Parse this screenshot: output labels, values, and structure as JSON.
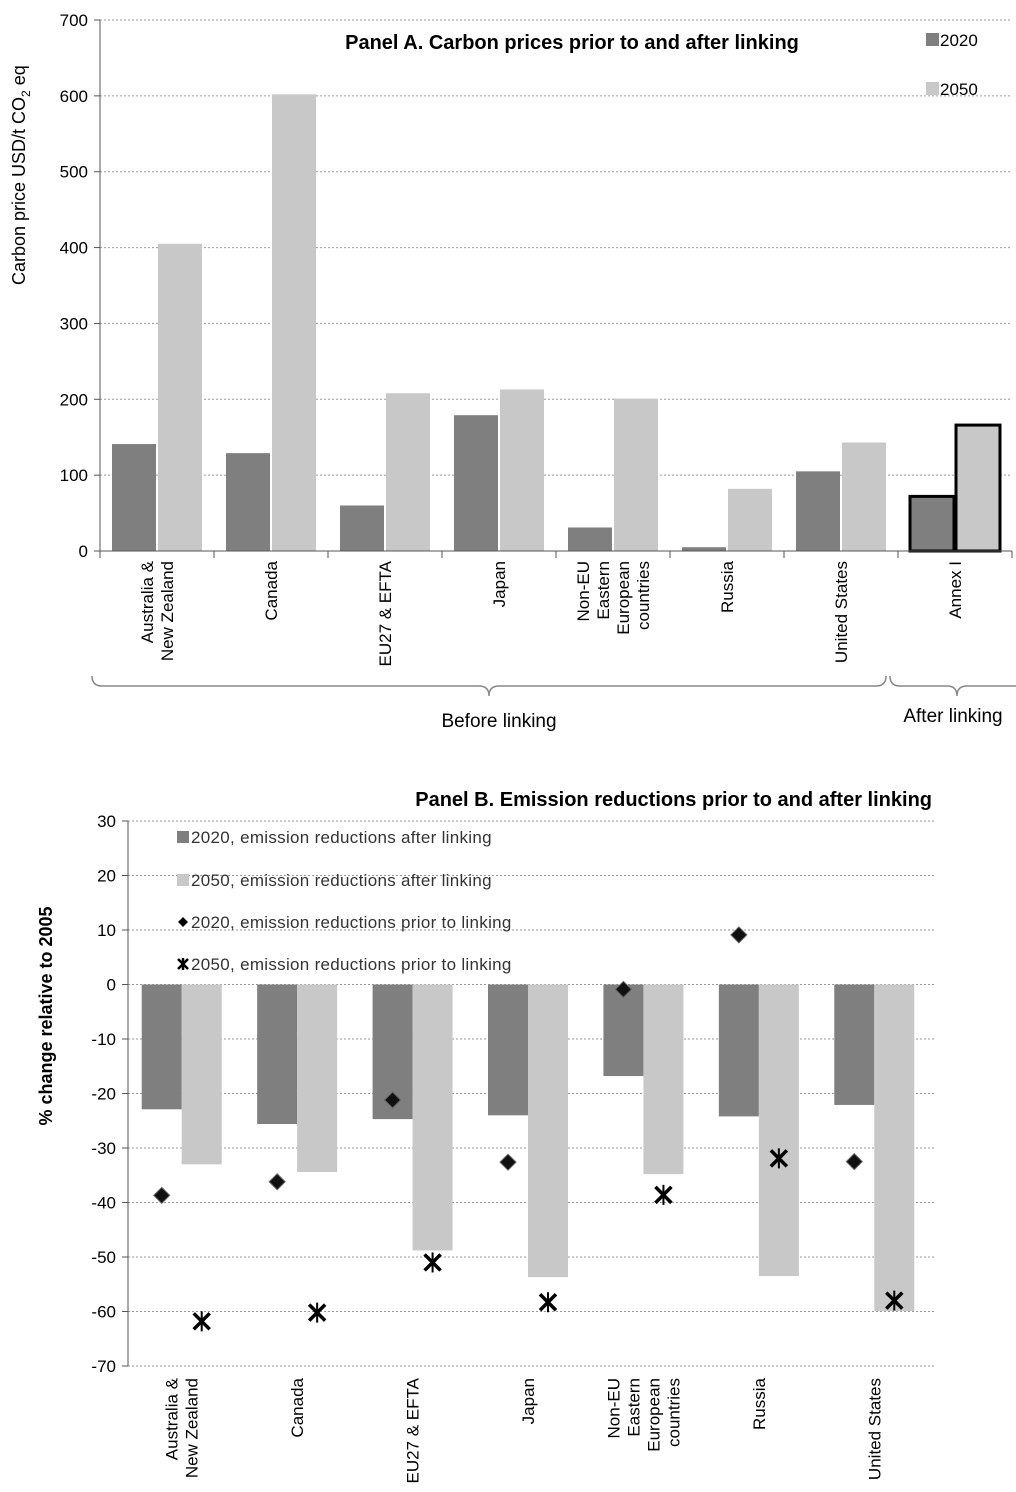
{
  "chart_data": [
    {
      "type": "bar",
      "title": "Panel A. Carbon prices prior to and after linking",
      "ylabel_main": "Carbon price USD/t CO",
      "ylabel_sub": "2",
      "ylabel_end": " eq",
      "ylim": [
        0,
        700
      ],
      "yticks": [
        0,
        100,
        200,
        300,
        400,
        500,
        600,
        700
      ],
      "grid": true,
      "legend_position": "top-right",
      "categories": [
        [
          "Australia &",
          "New Zealand"
        ],
        [
          "Canada"
        ],
        [
          "EU27 & EFTA"
        ],
        [
          "Japan"
        ],
        [
          "Non-EU",
          "Eastern",
          "European",
          "countries"
        ],
        [
          "Russia"
        ],
        [
          "United States"
        ],
        [
          "Annex I"
        ]
      ],
      "series": [
        {
          "name": "2020",
          "color": "#7f7f7f",
          "values": [
            141,
            129,
            60,
            179,
            31,
            5,
            105,
            72
          ]
        },
        {
          "name": "2050",
          "color": "#c8c8c8",
          "values": [
            405,
            602,
            208,
            213,
            201,
            82,
            143,
            166
          ]
        }
      ],
      "highlighted_category_index": 7,
      "groups": [
        {
          "label": "Before linking"
        },
        {
          "label": "After linking"
        }
      ]
    },
    {
      "type": "bar",
      "title": "Panel B. Emission reductions prior to and after linking",
      "ylabel": "% change relative to 2005",
      "ylim": [
        -70,
        30
      ],
      "yticks": [
        30,
        20,
        10,
        0,
        -10,
        -20,
        -30,
        -40,
        -50,
        -60,
        -70
      ],
      "grid": true,
      "legend_position": "top-left",
      "categories": [
        [
          "Australia &",
          "New Zealand"
        ],
        [
          "Canada"
        ],
        [
          "EU27 & EFTA"
        ],
        [
          "Japan"
        ],
        [
          "Non-EU",
          "Eastern",
          "European",
          "countries"
        ],
        [
          "Russia"
        ],
        [
          "United States"
        ]
      ],
      "series": [
        {
          "name": "2020, emission reductions after linking",
          "kind": "bar",
          "color": "#7f7f7f",
          "values": [
            -22.9,
            -25.6,
            -24.7,
            -24.0,
            -16.8,
            -24.2,
            -22.1
          ]
        },
        {
          "name": "2050, emission reductions after linking",
          "kind": "bar",
          "color": "#c8c8c8",
          "values": [
            -33.0,
            -34.4,
            -48.8,
            -53.7,
            -34.8,
            -53.5,
            -59.9
          ]
        },
        {
          "name": "2020, emission reductions prior to linking",
          "kind": "marker-diamond",
          "color": "#000000",
          "values": [
            -38.7,
            -36.2,
            -21.2,
            -32.6,
            -0.9,
            9.1,
            -32.5
          ]
        },
        {
          "name": "2050, emission reductions prior to linking",
          "kind": "marker-asterisk",
          "color": "#000000",
          "values": [
            -61.8,
            -60.2,
            -51.0,
            -58.3,
            -38.6,
            -31.9,
            -58.0
          ]
        }
      ]
    }
  ]
}
